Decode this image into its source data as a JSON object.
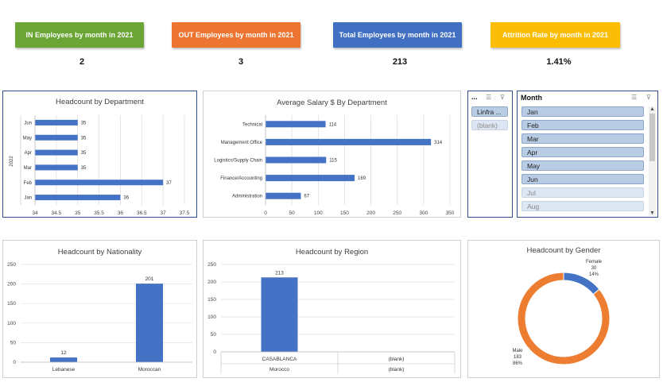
{
  "kpis": [
    {
      "label": "IN Employees by month in 2021",
      "value": "2",
      "color": "#6aa535"
    },
    {
      "label": "OUT Employees by month in 2021",
      "value": "3",
      "color": "#ed7532"
    },
    {
      "label": "Total Employees by month in 2021",
      "value": "213",
      "color": "#4170c3"
    },
    {
      "label": "Attrition Rate by month in 2021",
      "value": "1.41%",
      "color": "#fbbd05"
    }
  ],
  "charts": {
    "dept": {
      "title": "Headcount by Department",
      "chart_data": {
        "type": "bar",
        "orientation": "horizontal",
        "title": "Headcount by Department",
        "group_label": "2022",
        "categories": [
          "Jun",
          "May",
          "Apr",
          "Mar",
          "Feb",
          "Jan"
        ],
        "values": [
          35,
          35,
          35,
          35,
          37,
          36
        ],
        "xlim": [
          34,
          37.5
        ],
        "xticks": [
          "34",
          "34.5",
          "35",
          "35.5",
          "36",
          "36.5",
          "37",
          "37.5"
        ],
        "color": "#4472c4"
      }
    },
    "salary": {
      "title": "Average Salary $ By Department",
      "chart_data": {
        "type": "bar",
        "orientation": "horizontal",
        "title": "Average Salary $ By Department",
        "categories": [
          "Technical",
          "Management Office",
          "Logistics/Supply Chain",
          "Finance/Accounting",
          "Administration"
        ],
        "values": [
          114,
          314,
          115,
          169,
          67
        ],
        "xlim": [
          0,
          350
        ],
        "xticks": [
          "0",
          "50",
          "100",
          "150",
          "200",
          "250",
          "300",
          "350"
        ],
        "color": "#4472c4"
      }
    },
    "nationality": {
      "title": "Headcount by Nationality",
      "chart_data": {
        "type": "bar",
        "title": "Headcount by Nationality",
        "categories": [
          "Lebanese",
          "Moroccan"
        ],
        "values": [
          12,
          201
        ],
        "ylim": [
          0,
          250
        ],
        "yticks": [
          "0",
          "50",
          "100",
          "150",
          "200",
          "250"
        ],
        "color": "#4472c4"
      }
    },
    "region": {
      "title": "Headcount by Region",
      "chart_data": {
        "type": "bar",
        "title": "Headcount by Region",
        "categories": [
          "CASABLANCA",
          "(blank)"
        ],
        "groups": [
          "Morocco",
          "(blank)"
        ],
        "values": [
          213,
          0
        ],
        "ylim": [
          0,
          250
        ],
        "yticks": [
          "0",
          "50",
          "100",
          "150",
          "200",
          "250"
        ],
        "color": "#4472c4"
      }
    },
    "gender": {
      "title": "Headcount by Gender",
      "chart_data": {
        "type": "pie",
        "donut": true,
        "title": "Headcount by Gender",
        "categories": [
          "Female",
          "Male"
        ],
        "values": [
          30,
          183
        ],
        "percent_labels": [
          "14%",
          "86%"
        ],
        "value_labels": [
          "30",
          "183"
        ],
        "colors": [
          "#4472c4",
          "#ed7d31"
        ]
      }
    }
  },
  "slicer_small": {
    "title": "...",
    "items": [
      {
        "label": "Linfra ...",
        "selected": true
      },
      {
        "label": "(blank)",
        "selected": false
      }
    ]
  },
  "slicer_month": {
    "title": "Month",
    "items": [
      {
        "label": "Jan",
        "selected": true
      },
      {
        "label": "Feb",
        "selected": true
      },
      {
        "label": "Mar",
        "selected": true
      },
      {
        "label": "Apr",
        "selected": true
      },
      {
        "label": "May",
        "selected": true
      },
      {
        "label": "Jun",
        "selected": true
      },
      {
        "label": "Jul",
        "selected": false
      },
      {
        "label": "Aug",
        "selected": false
      }
    ]
  },
  "icons": {
    "multiselect": "multi-select-icon",
    "clear_filter": "clear-filter-icon"
  }
}
